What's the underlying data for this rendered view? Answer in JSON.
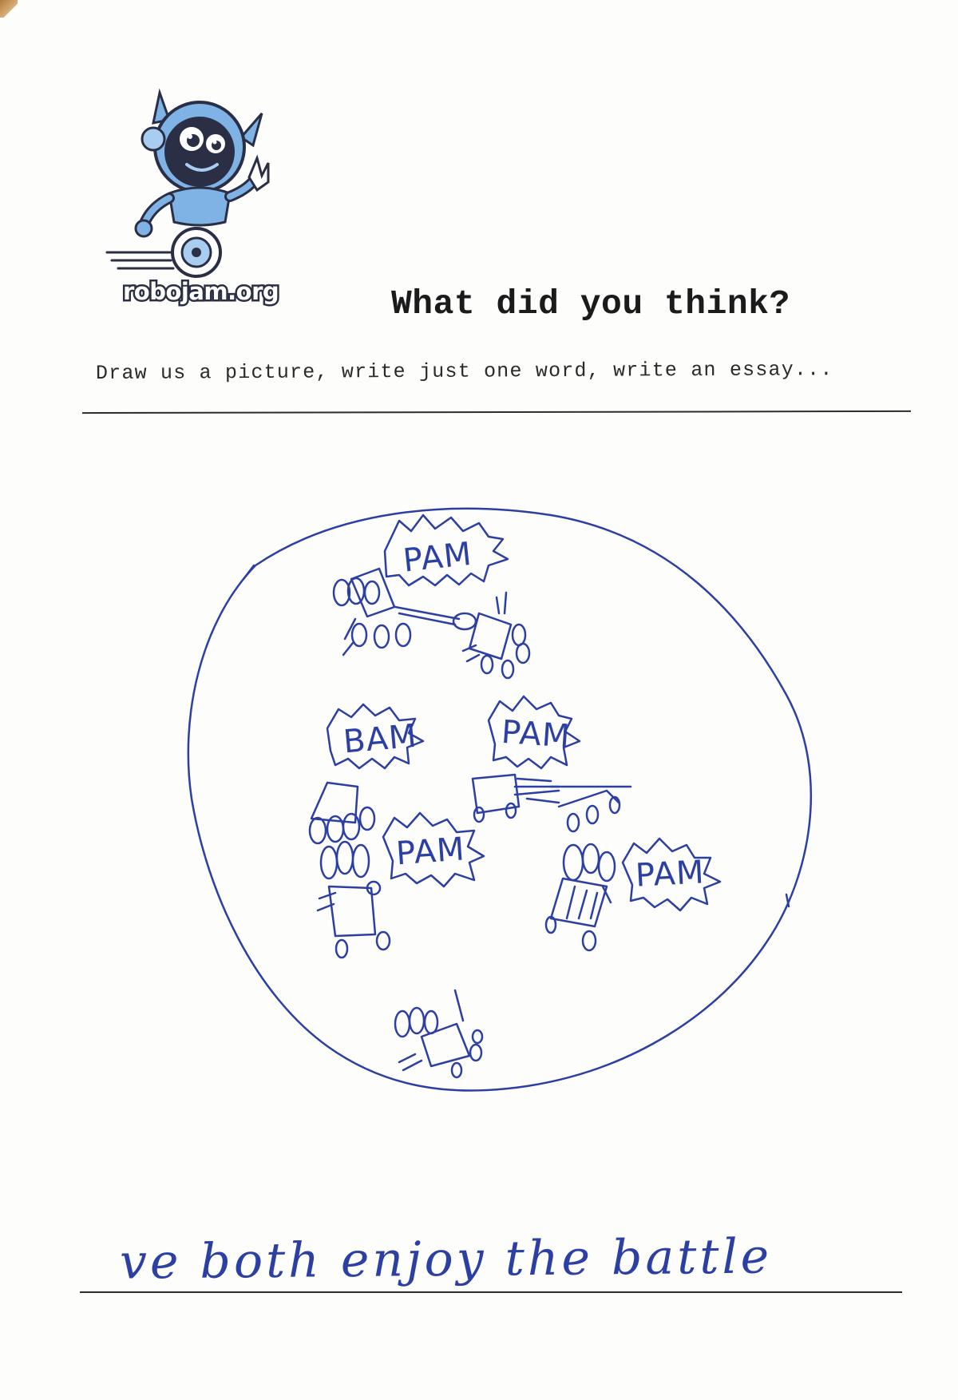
{
  "brand": {
    "logo_text": "robojam.org",
    "mascot_icon": "robot-mascot-icon"
  },
  "header": {
    "title": "What did you think?",
    "instructions": "Draw us a picture, write just one word, write an essay..."
  },
  "drawing": {
    "onomatopoeia": [
      "PAM",
      "BAM",
      "PAM",
      "PAM",
      "PAM"
    ]
  },
  "response": {
    "handwritten_text": "ve both enjoy the battle"
  },
  "colors": {
    "ink": "#2c3fa3",
    "print": "#1b1b1b",
    "mascot_blue": "#7fb2e5",
    "mascot_dark": "#2b2f45"
  }
}
